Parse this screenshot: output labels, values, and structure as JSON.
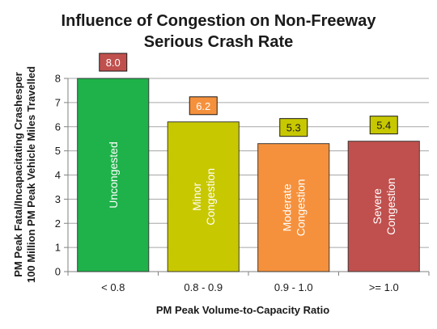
{
  "chart_data": {
    "type": "bar",
    "title": [
      "Influence of Congestion on Non-Freeway",
      "Serious Crash Rate"
    ],
    "xlabel": "PM Peak Volume-to-Capacity Ratio",
    "ylabel": [
      "PM Peak Fatal/Incapacitating Crashesper",
      "100 Million PM Peak Vehicle Miles Travelled"
    ],
    "ylim": [
      0,
      8
    ],
    "yticks": [
      0,
      1,
      2,
      3,
      4,
      5,
      6,
      7,
      8
    ],
    "grid": true,
    "legend": "none",
    "categories": [
      "< 0.8",
      "0.8 - 0.9",
      "0.9 - 1.0",
      ">= 1.0"
    ],
    "values": [
      8.0,
      6.2,
      5.3,
      5.4
    ],
    "value_labels": [
      "8.0",
      "6.2",
      "5.3",
      "5.4"
    ],
    "bar_labels": [
      [
        "Uncongested"
      ],
      [
        "Minor",
        "Congestion"
      ],
      [
        "Moderate",
        "Congestion"
      ],
      [
        "Severe",
        "Congestion"
      ]
    ],
    "bar_colors": [
      "#1fb24a",
      "#c8c800",
      "#f5913d",
      "#c0504d"
    ],
    "label_box_colors": [
      "#c0504d",
      "#f5913d",
      "#c8c800",
      "#c8c800"
    ],
    "label_text_colors": [
      "#ffffff",
      "#ffffff",
      "#1a1a1a",
      "#1a1a1a"
    ]
  }
}
